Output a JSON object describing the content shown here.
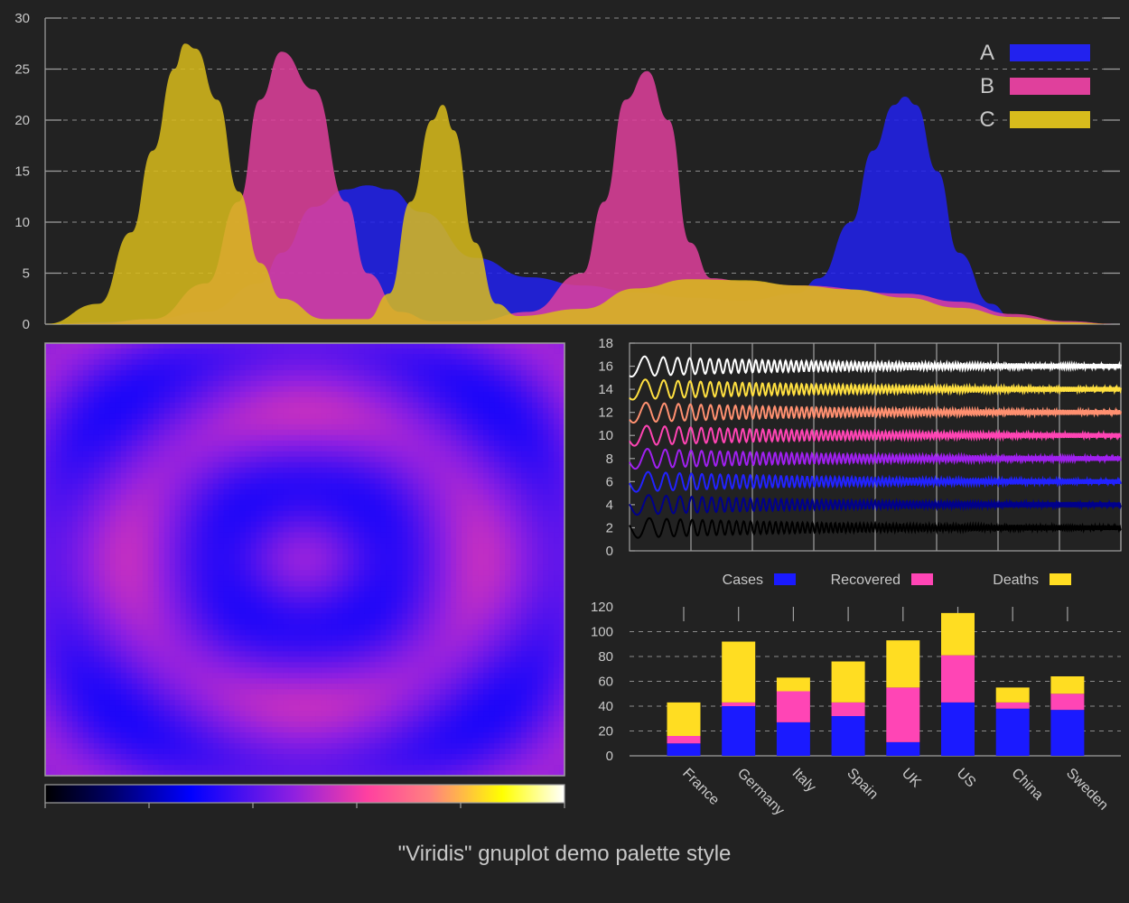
{
  "figure": {
    "caption": "\"Viridis\" gnuplot demo palette style",
    "colors": {
      "background": "#222222",
      "text": "#c8c8c8",
      "axis": "#a0a0a0",
      "grid": "#8a8a8a"
    }
  },
  "chart_data": [
    {
      "type": "area",
      "xlim": [
        0,
        1
      ],
      "ylim": [
        0,
        30
      ],
      "yticks": [
        0,
        5,
        10,
        15,
        20,
        25,
        30
      ],
      "grid": true,
      "legend_position": "top-right",
      "series": [
        {
          "name": "A",
          "color": "#2222ee",
          "x": [
            0.0,
            0.05,
            0.1,
            0.15,
            0.2,
            0.22,
            0.25,
            0.28,
            0.3,
            0.32,
            0.35,
            0.4,
            0.45,
            0.5,
            0.55,
            0.6,
            0.65,
            0.7,
            0.72,
            0.75,
            0.77,
            0.79,
            0.8,
            0.81,
            0.83,
            0.85,
            0.88,
            0.9,
            0.95,
            1.0
          ],
          "y": [
            0,
            0.2,
            0.5,
            1.2,
            4,
            7,
            11.5,
            13.2,
            13.6,
            13.2,
            11,
            6.5,
            4.6,
            3.8,
            3.1,
            2.6,
            2.3,
            3.0,
            4.5,
            10,
            17,
            21.5,
            22.3,
            21.5,
            15,
            7,
            2,
            0.5,
            0.2,
            0
          ]
        },
        {
          "name": "B",
          "color": "#e0409c",
          "x": [
            0.0,
            0.05,
            0.1,
            0.15,
            0.18,
            0.2,
            0.22,
            0.25,
            0.28,
            0.3,
            0.33,
            0.36,
            0.4,
            0.45,
            0.5,
            0.52,
            0.54,
            0.56,
            0.58,
            0.6,
            0.62,
            0.65,
            0.7,
            0.8,
            0.85,
            0.9,
            0.95,
            1.0
          ],
          "y": [
            0,
            0.1,
            0.5,
            4,
            12,
            22,
            26.7,
            23,
            12,
            5,
            1.2,
            0.3,
            0.3,
            1.2,
            5,
            12,
            22,
            24.8,
            20,
            8,
            4.5,
            4.2,
            3.8,
            3.0,
            2.2,
            1.0,
            0.3,
            0
          ]
        },
        {
          "name": "C",
          "color": "#d8bc1c",
          "x": [
            0.0,
            0.05,
            0.08,
            0.1,
            0.12,
            0.13,
            0.14,
            0.16,
            0.18,
            0.2,
            0.22,
            0.26,
            0.3,
            0.32,
            0.34,
            0.36,
            0.37,
            0.38,
            0.4,
            0.42,
            0.44,
            0.5,
            0.55,
            0.6,
            0.65,
            0.7,
            0.75,
            0.8,
            0.85,
            0.9,
            0.95,
            1.0
          ],
          "y": [
            0,
            2,
            9,
            17,
            25,
            27.5,
            27,
            22,
            13,
            6,
            2.5,
            0.5,
            0.5,
            3,
            12,
            20,
            21.5,
            19,
            8,
            2,
            0.8,
            1.5,
            3.5,
            4.4,
            4.3,
            3.8,
            3.4,
            2.6,
            1.6,
            0.7,
            0.2,
            0
          ]
        }
      ]
    },
    {
      "type": "heatmap",
      "colorbar": true,
      "palette_stops": [
        "#000000",
        "#0000ff",
        "#8020e0",
        "#ff40a0",
        "#ffff00",
        "#ffffff"
      ]
    },
    {
      "type": "line",
      "ylim": [
        0,
        18
      ],
      "yticks": [
        0,
        2,
        4,
        6,
        8,
        10,
        12,
        14,
        16,
        18
      ],
      "series": [
        {
          "offset": 2,
          "color": "#000000"
        },
        {
          "offset": 4,
          "color": "#00008b"
        },
        {
          "offset": 6,
          "color": "#2222ff"
        },
        {
          "offset": 8,
          "color": "#a020f0"
        },
        {
          "offset": 10,
          "color": "#ff44b4"
        },
        {
          "offset": 12,
          "color": "#ff9070"
        },
        {
          "offset": 14,
          "color": "#ffe040"
        },
        {
          "offset": 16,
          "color": "#ffffff"
        }
      ]
    },
    {
      "type": "bar",
      "stacked": true,
      "ylim": [
        0,
        120
      ],
      "yticks": [
        0,
        20,
        40,
        60,
        80,
        100,
        120
      ],
      "grid": true,
      "legend_position": "top",
      "categories": [
        "France",
        "Germany",
        "Italy",
        "Spain",
        "UK",
        "US",
        "China",
        "Sweden"
      ],
      "series": [
        {
          "name": "Cases",
          "color": "#1a1aff",
          "values": [
            10,
            40,
            27,
            32,
            11,
            43,
            38,
            37
          ]
        },
        {
          "name": "Recovered",
          "color": "#ff45b5",
          "values": [
            6,
            3,
            25,
            11,
            44,
            38,
            5,
            13
          ]
        },
        {
          "name": "Deaths",
          "color": "#ffdd22",
          "values": [
            27,
            49,
            11,
            33,
            38,
            34,
            12,
            14
          ]
        }
      ]
    }
  ]
}
